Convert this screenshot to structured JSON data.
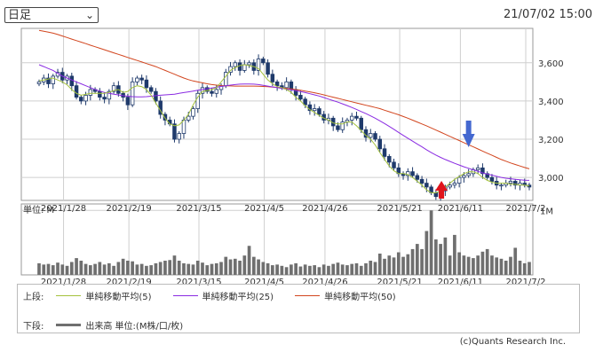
{
  "header": {
    "period_select": "日足",
    "datetime": "21/07/02 15:00"
  },
  "colors": {
    "ma5": "#a4c23c",
    "ma25": "#8a2be2",
    "ma50": "#d2451e",
    "up_candle": "#ffffff",
    "down_candle": "#1f3a6b",
    "volume": "#6f6f6f",
    "arrow_up": "#e0141c",
    "arrow_down": "#4468d0"
  },
  "legend": {
    "upper_label": "上段:",
    "lower_label": "下段:",
    "ma5_label": "単純移動平均(5)",
    "ma25_label": "単純移動平均(25)",
    "ma50_label": "単純移動平均(50)",
    "volume_label": "出来高 単位:(M株/口/枚)"
  },
  "credit": "(c)Quants Research Inc.",
  "chart_data": [
    {
      "type": "candlestick",
      "title": "",
      "x_tick_labels": [
        "2021/1/28",
        "2021/2/19",
        "2021/3/15",
        "2021/4/5",
        "2021/4/26",
        "2021/5/21",
        "2021/6/11",
        "2021/7/2"
      ],
      "y_tick_labels": [
        "3,600",
        "3,400",
        "3,200",
        "3,000"
      ],
      "y_ticks": [
        3600,
        3400,
        3200,
        3000
      ],
      "ylim": [
        2880,
        3780
      ],
      "grid": true,
      "annotations": [
        {
          "type": "arrow-up",
          "date": "2021/5/31",
          "label": ""
        },
        {
          "type": "arrow-down",
          "date": "2021/6/8",
          "label": ""
        }
      ],
      "ohlc_close": [
        3500,
        3520,
        3490,
        3530,
        3550,
        3510,
        3530,
        3480,
        3420,
        3400,
        3430,
        3460,
        3450,
        3420,
        3410,
        3450,
        3480,
        3440,
        3420,
        3380,
        3500,
        3520,
        3510,
        3470,
        3450,
        3400,
        3330,
        3300,
        3280,
        3200,
        3230,
        3300,
        3320,
        3360,
        3440,
        3470,
        3450,
        3440,
        3460,
        3480,
        3550,
        3580,
        3600,
        3560,
        3590,
        3600,
        3560,
        3620,
        3600,
        3540,
        3500,
        3480,
        3470,
        3500,
        3460,
        3430,
        3410,
        3380,
        3350,
        3360,
        3330,
        3300,
        3310,
        3270,
        3250,
        3290,
        3300,
        3320,
        3310,
        3250,
        3210,
        3230,
        3200,
        3150,
        3110,
        3080,
        3050,
        3020,
        3010,
        3030,
        3010,
        2990,
        2970,
        2950,
        2920,
        2900,
        2930,
        2950,
        2960,
        2970,
        3000,
        3010,
        3020,
        3040,
        3050,
        3020,
        3000,
        2980,
        2960,
        2960,
        2970,
        2980,
        2960,
        2970,
        2960,
        2950
      ],
      "ma5": [
        3505,
        3510,
        3515,
        3520,
        3510,
        3500,
        3485,
        3460,
        3440,
        3430,
        3435,
        3440,
        3440,
        3440,
        3440,
        3445,
        3455,
        3460,
        3445,
        3450,
        3470,
        3480,
        3475,
        3460,
        3430,
        3390,
        3350,
        3310,
        3280,
        3270,
        3275,
        3300,
        3330,
        3380,
        3420,
        3450,
        3455,
        3460,
        3470,
        3500,
        3530,
        3560,
        3575,
        3585,
        3590,
        3585,
        3580,
        3570,
        3540,
        3510,
        3490,
        3475,
        3470,
        3460,
        3445,
        3420,
        3400,
        3375,
        3355,
        3340,
        3325,
        3310,
        3300,
        3285,
        3280,
        3280,
        3290,
        3290,
        3270,
        3245,
        3220,
        3200,
        3170,
        3130,
        3095,
        3060,
        3035,
        3020,
        3020,
        3015,
        3000,
        2980,
        2960,
        2935,
        2920,
        2920,
        2930,
        2950,
        2970,
        2990,
        3005,
        3020,
        3030,
        3030,
        3020,
        3000,
        2985,
        2975,
        2970,
        2970,
        2970,
        2965,
        2965,
        2960,
        2960,
        2955
      ],
      "ma25": [
        3590,
        3580,
        3570,
        3560,
        3545,
        3530,
        3520,
        3510,
        3500,
        3490,
        3480,
        3470,
        3460,
        3452,
        3445,
        3440,
        3436,
        3432,
        3428,
        3425,
        3423,
        3422,
        3422,
        3423,
        3425,
        3428,
        3430,
        3432,
        3434,
        3436,
        3440,
        3444,
        3448,
        3452,
        3456,
        3460,
        3464,
        3468,
        3472,
        3476,
        3480,
        3483,
        3486,
        3488,
        3489,
        3489,
        3488,
        3486,
        3482,
        3478,
        3474,
        3470,
        3466,
        3462,
        3458,
        3454,
        3449,
        3444,
        3438,
        3432,
        3426,
        3418,
        3410,
        3402,
        3394,
        3385,
        3376,
        3366,
        3356,
        3345,
        3334,
        3322,
        3310,
        3296,
        3282,
        3267,
        3252,
        3236,
        3220,
        3205,
        3190,
        3175,
        3160,
        3145,
        3130,
        3117,
        3105,
        3094,
        3084,
        3074,
        3065,
        3056,
        3048,
        3040,
        3032,
        3024,
        3018,
        3012,
        3006,
        3000,
        2996,
        2993,
        2990,
        2988,
        2986,
        2985
      ],
      "ma50": [
        3770,
        3765,
        3760,
        3755,
        3748,
        3740,
        3732,
        3724,
        3716,
        3708,
        3700,
        3692,
        3684,
        3676,
        3668,
        3660,
        3652,
        3644,
        3636,
        3628,
        3620,
        3612,
        3604,
        3596,
        3588,
        3580,
        3570,
        3560,
        3550,
        3540,
        3530,
        3520,
        3512,
        3505,
        3500,
        3495,
        3490,
        3486,
        3483,
        3481,
        3480,
        3479,
        3478,
        3478,
        3478,
        3478,
        3478,
        3477,
        3476,
        3475,
        3473,
        3471,
        3469,
        3466,
        3463,
        3460,
        3456,
        3452,
        3448,
        3443,
        3438,
        3432,
        3426,
        3420,
        3414,
        3408,
        3402,
        3396,
        3390,
        3384,
        3378,
        3372,
        3366,
        3360,
        3352,
        3344,
        3336,
        3328,
        3319,
        3310,
        3300,
        3290,
        3280,
        3270,
        3259,
        3248,
        3237,
        3226,
        3215,
        3204,
        3193,
        3182,
        3171,
        3160,
        3149,
        3138,
        3127,
        3116,
        3105,
        3094,
        3085,
        3076,
        3068,
        3060,
        3052,
        3045
      ]
    },
    {
      "type": "bar",
      "title": "",
      "ylabel": "単位: M",
      "y_tick_labels": [
        "1M"
      ],
      "y_ticks": [
        1
      ],
      "ylim": [
        0,
        1.1
      ],
      "values": [
        0.18,
        0.16,
        0.17,
        0.15,
        0.19,
        0.16,
        0.14,
        0.2,
        0.26,
        0.22,
        0.17,
        0.15,
        0.17,
        0.2,
        0.16,
        0.18,
        0.14,
        0.2,
        0.25,
        0.22,
        0.21,
        0.16,
        0.17,
        0.14,
        0.15,
        0.18,
        0.2,
        0.22,
        0.23,
        0.3,
        0.22,
        0.18,
        0.17,
        0.16,
        0.22,
        0.19,
        0.15,
        0.17,
        0.18,
        0.2,
        0.28,
        0.24,
        0.25,
        0.22,
        0.3,
        0.45,
        0.28,
        0.24,
        0.2,
        0.18,
        0.15,
        0.16,
        0.14,
        0.12,
        0.16,
        0.18,
        0.13,
        0.16,
        0.14,
        0.15,
        0.12,
        0.16,
        0.14,
        0.17,
        0.19,
        0.16,
        0.15,
        0.17,
        0.18,
        0.14,
        0.18,
        0.22,
        0.2,
        0.33,
        0.25,
        0.3,
        0.27,
        0.35,
        0.28,
        0.32,
        0.4,
        0.48,
        0.4,
        0.68,
        1.0,
        0.55,
        0.48,
        0.58,
        0.3,
        0.62,
        0.35,
        0.3,
        0.28,
        0.26,
        0.3,
        0.36,
        0.4,
        0.3,
        0.27,
        0.25,
        0.22,
        0.28,
        0.42,
        0.22,
        0.18,
        0.2
      ]
    }
  ]
}
